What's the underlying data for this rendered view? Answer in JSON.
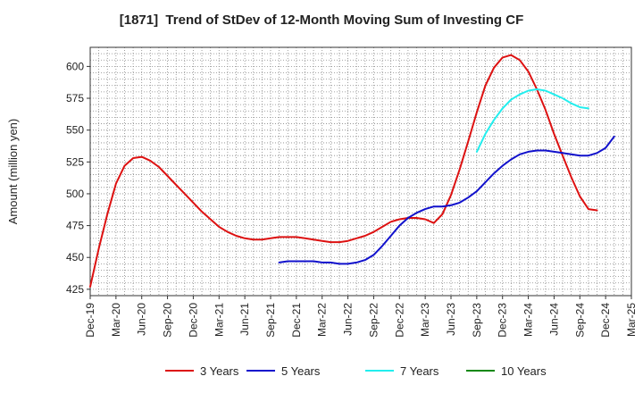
{
  "chart_data": {
    "type": "line",
    "title": "[1871]  Trend of StDev of 12-Month Moving Sum of Investing CF",
    "xlabel": "",
    "ylabel": "Amount (million yen)",
    "ylim": [
      420,
      615
    ],
    "yticks": [
      425,
      450,
      475,
      500,
      525,
      550,
      575,
      600
    ],
    "xticks": [
      "Dec-19",
      "Mar-20",
      "Jun-20",
      "Sep-20",
      "Dec-20",
      "Mar-21",
      "Jun-21",
      "Sep-21",
      "Dec-21",
      "Mar-22",
      "Jun-22",
      "Sep-22",
      "Dec-22",
      "Mar-23",
      "Jun-23",
      "Sep-23",
      "Dec-23",
      "Mar-24",
      "Jun-24",
      "Sep-24",
      "Dec-24",
      "Mar-25"
    ],
    "grid": true,
    "legend_position": "bottom",
    "series": [
      {
        "name": "3 Years",
        "color": "#dd1111",
        "start": "Dec-19",
        "values": [
          427,
          457,
          484,
          508,
          522,
          528,
          529,
          526,
          521,
          514,
          507,
          500,
          493,
          486,
          480,
          474,
          470,
          467,
          465,
          464,
          464,
          465,
          466,
          466,
          466,
          465,
          464,
          463,
          462,
          462,
          463,
          465,
          467,
          470,
          474,
          478,
          480,
          481,
          481,
          480,
          477,
          484,
          499,
          519,
          541,
          564,
          585,
          599,
          607,
          609,
          605,
          596,
          582,
          566,
          547,
          530,
          513,
          498,
          488,
          487
        ],
        "end_note": "monthly values Dec-19 to Nov-24"
      },
      {
        "name": "5 Years",
        "color": "#1111cc",
        "start": "Oct-21",
        "values": [
          446,
          447,
          447,
          447,
          447,
          446,
          446,
          445,
          445,
          446,
          448,
          452,
          459,
          467,
          475,
          481,
          485,
          488,
          490,
          490,
          491,
          493,
          497,
          502,
          509,
          516,
          522,
          527,
          531,
          533,
          534,
          534,
          533,
          532,
          531,
          530,
          530,
          532,
          536,
          545
        ]
      },
      {
        "name": "7 Years",
        "color": "#22eeee",
        "start": "Sep-23",
        "values": [
          533,
          547,
          558,
          567,
          574,
          578,
          581,
          582,
          581,
          578,
          575,
          571,
          568,
          567
        ]
      },
      {
        "name": "10 Years",
        "color": "#118811",
        "start": "Sep-23",
        "values": []
      }
    ]
  }
}
